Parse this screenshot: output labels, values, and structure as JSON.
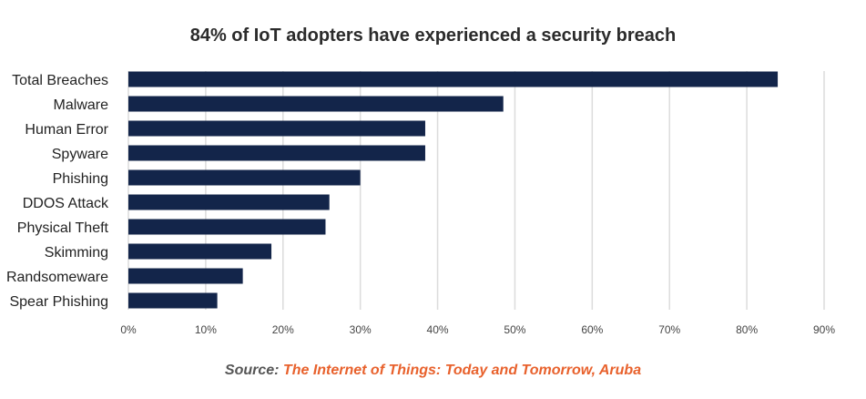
{
  "chart_data": {
    "type": "bar",
    "orientation": "horizontal",
    "title": "84% of IoT adopters have experienced a security breach",
    "categories": [
      "Total Breaches",
      "Malware",
      "Human Error",
      "Spyware",
      "Phishing",
      "DDOS Attack",
      "Physical Theft",
      "Skimming",
      "Randsomeware",
      "Spear Phishing"
    ],
    "values": [
      84,
      48.5,
      38.4,
      38.4,
      30,
      26,
      25.5,
      18.5,
      14.8,
      11.5
    ],
    "xlim": [
      0,
      90
    ],
    "xticks": [
      "0%",
      "10%",
      "20%",
      "30%",
      "40%",
      "50%",
      "60%",
      "70%",
      "80%",
      "90%"
    ],
    "grid": "vertical",
    "bar_color": "#13254a",
    "grid_color": "#dcdcdc"
  },
  "source": {
    "prefix": "Source:",
    "text": "The Internet of Things: Today and Tomorrow, Aruba",
    "accent_color": "#e8612c"
  }
}
